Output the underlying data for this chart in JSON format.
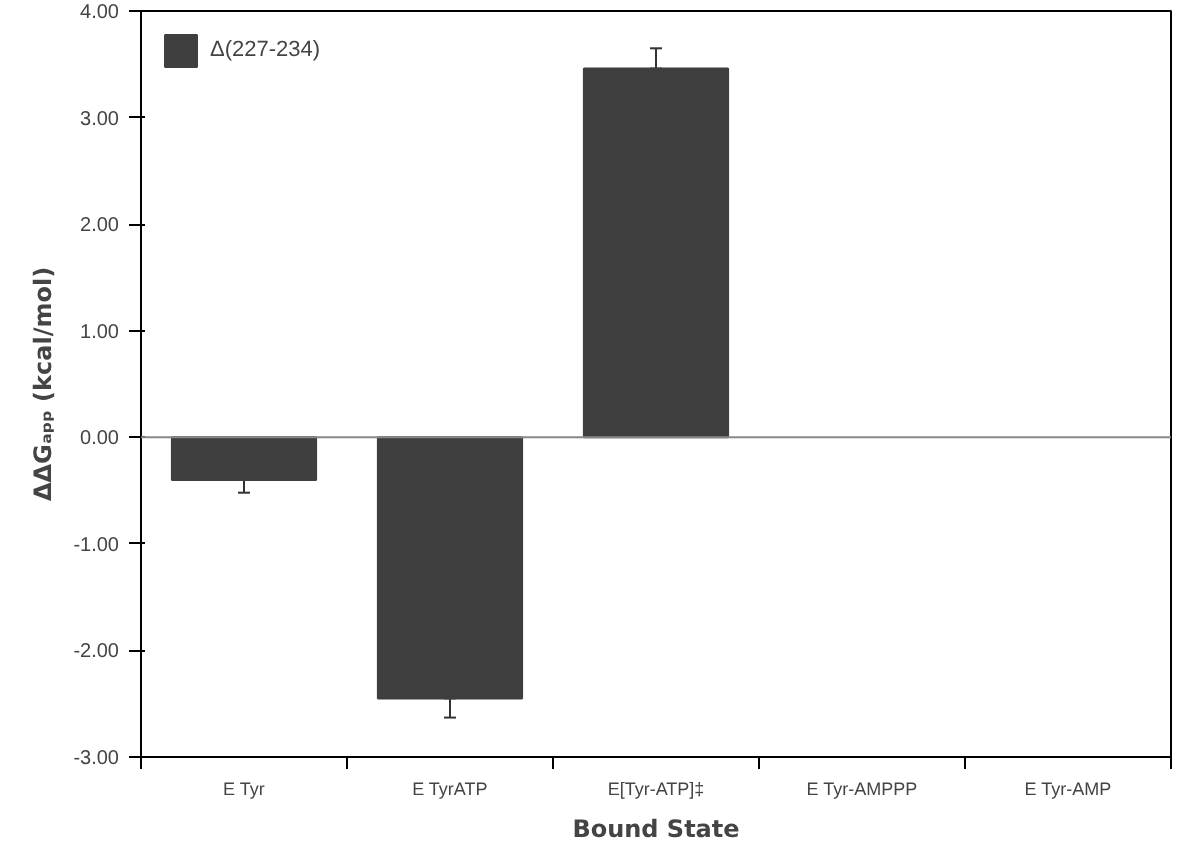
{
  "chart_data": {
    "type": "bar",
    "xlabel": "Bound State",
    "ylabel": "ΔΔGₐₚₚ (kcal/mol)",
    "categories": [
      "E Tyr",
      "E TyrATP",
      "E[Tyr-ATP]‡",
      "E Tyr-AMPPP",
      "E Tyr-AMP"
    ],
    "series": [
      {
        "name": "Δ(227-234)",
        "color": "#3f3f3f",
        "values": [
          -0.4,
          -2.45,
          3.46,
          null,
          null
        ],
        "errors": [
          0.12,
          0.18,
          0.19,
          null,
          null
        ]
      }
    ],
    "ylim": [
      -3,
      4
    ],
    "yticks": [
      {
        "value": -3,
        "label": "-3.00"
      },
      {
        "value": -2,
        "label": "-2.00"
      },
      {
        "value": -1,
        "label": "-1.00"
      },
      {
        "value": 0,
        "label": "0.00"
      },
      {
        "value": 1,
        "label": "1.00"
      },
      {
        "value": 2,
        "label": "2.00"
      },
      {
        "value": 3,
        "label": "3.00"
      },
      {
        "value": 4,
        "label": "4.00"
      }
    ],
    "ref_lines": [
      {
        "axis": "y",
        "value": 0,
        "color": "#888888"
      }
    ],
    "grid": false,
    "legend": "top left"
  }
}
